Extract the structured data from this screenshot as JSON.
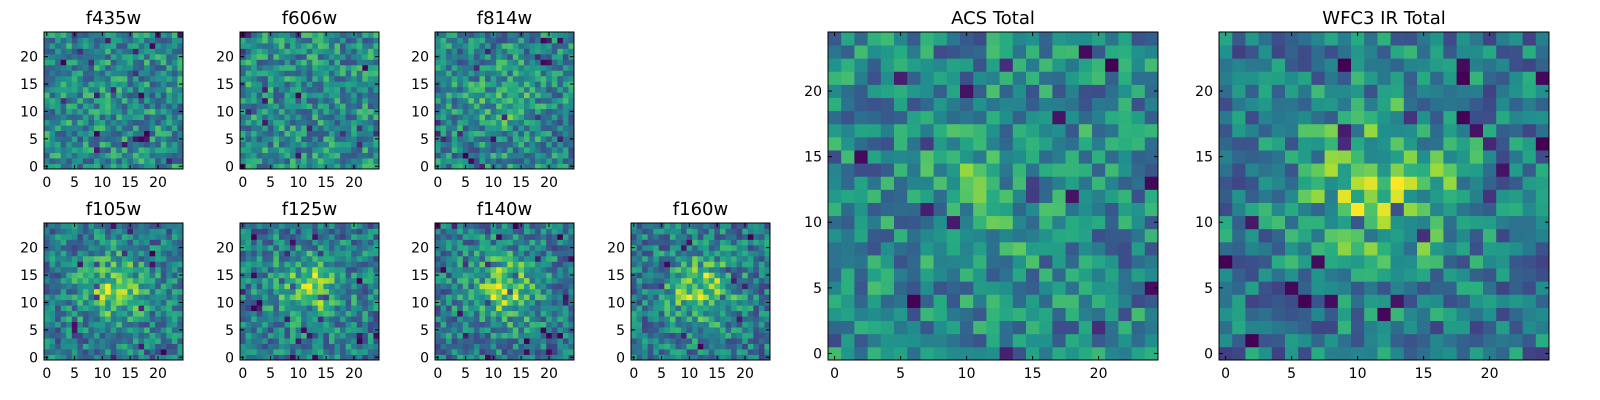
{
  "figure": {
    "colormap": "viridis",
    "background": "#ffffff"
  },
  "chart_data": [
    {
      "type": "heatmap",
      "title": "f435w",
      "grid": [
        25,
        25
      ],
      "xticks": [
        0,
        5,
        10,
        15,
        20
      ],
      "yticks": [
        0,
        5,
        10,
        15,
        20
      ],
      "xlim": [
        -0.5,
        24.5
      ],
      "ylim": [
        -0.5,
        24.5
      ],
      "pattern": "noise"
    },
    {
      "type": "heatmap",
      "title": "f606w",
      "grid": [
        25,
        25
      ],
      "xticks": [
        0,
        5,
        10,
        15,
        20
      ],
      "yticks": [
        0,
        5,
        10,
        15,
        20
      ],
      "xlim": [
        -0.5,
        24.5
      ],
      "ylim": [
        -0.5,
        24.5
      ],
      "pattern": "noise"
    },
    {
      "type": "heatmap",
      "title": "f814w",
      "grid": [
        25,
        25
      ],
      "xticks": [
        0,
        5,
        10,
        15,
        20
      ],
      "yticks": [
        0,
        5,
        10,
        15,
        20
      ],
      "xlim": [
        -0.5,
        24.5
      ],
      "ylim": [
        -0.5,
        24.5
      ],
      "pattern": "faint-source"
    },
    {
      "type": "heatmap",
      "title": "f105w",
      "grid": [
        25,
        25
      ],
      "xticks": [
        0,
        5,
        10,
        15,
        20
      ],
      "yticks": [
        0,
        5,
        10,
        15,
        20
      ],
      "xlim": [
        -0.5,
        24.5
      ],
      "ylim": [
        -0.5,
        24.5
      ],
      "pattern": "source"
    },
    {
      "type": "heatmap",
      "title": "f125w",
      "grid": [
        25,
        25
      ],
      "xticks": [
        0,
        5,
        10,
        15,
        20
      ],
      "yticks": [
        0,
        5,
        10,
        15,
        20
      ],
      "xlim": [
        -0.5,
        24.5
      ],
      "ylim": [
        -0.5,
        24.5
      ],
      "pattern": "source"
    },
    {
      "type": "heatmap",
      "title": "f140w",
      "grid": [
        25,
        25
      ],
      "xticks": [
        0,
        5,
        10,
        15,
        20
      ],
      "yticks": [
        0,
        5,
        10,
        15,
        20
      ],
      "xlim": [
        -0.5,
        24.5
      ],
      "ylim": [
        -0.5,
        24.5
      ],
      "pattern": "source"
    },
    {
      "type": "heatmap",
      "title": "f160w",
      "grid": [
        25,
        25
      ],
      "xticks": [
        0,
        5,
        10,
        15,
        20
      ],
      "yticks": [
        0,
        5,
        10,
        15,
        20
      ],
      "xlim": [
        -0.5,
        24.5
      ],
      "ylim": [
        -0.5,
        24.5
      ],
      "pattern": "source"
    },
    {
      "type": "heatmap",
      "title": "ACS Total",
      "grid": [
        25,
        25
      ],
      "xticks": [
        0,
        5,
        10,
        15,
        20
      ],
      "yticks": [
        0,
        5,
        10,
        15,
        20
      ],
      "xlim": [
        -0.5,
        24.5
      ],
      "ylim": [
        -0.5,
        24.5
      ],
      "pattern": "faint-source"
    },
    {
      "type": "heatmap",
      "title": "WFC3 IR Total",
      "grid": [
        25,
        25
      ],
      "xticks": [
        0,
        5,
        10,
        15,
        20
      ],
      "yticks": [
        0,
        5,
        10,
        15,
        20
      ],
      "xlim": [
        -0.5,
        24.5
      ],
      "ylim": [
        -0.5,
        24.5
      ],
      "pattern": "source"
    }
  ]
}
